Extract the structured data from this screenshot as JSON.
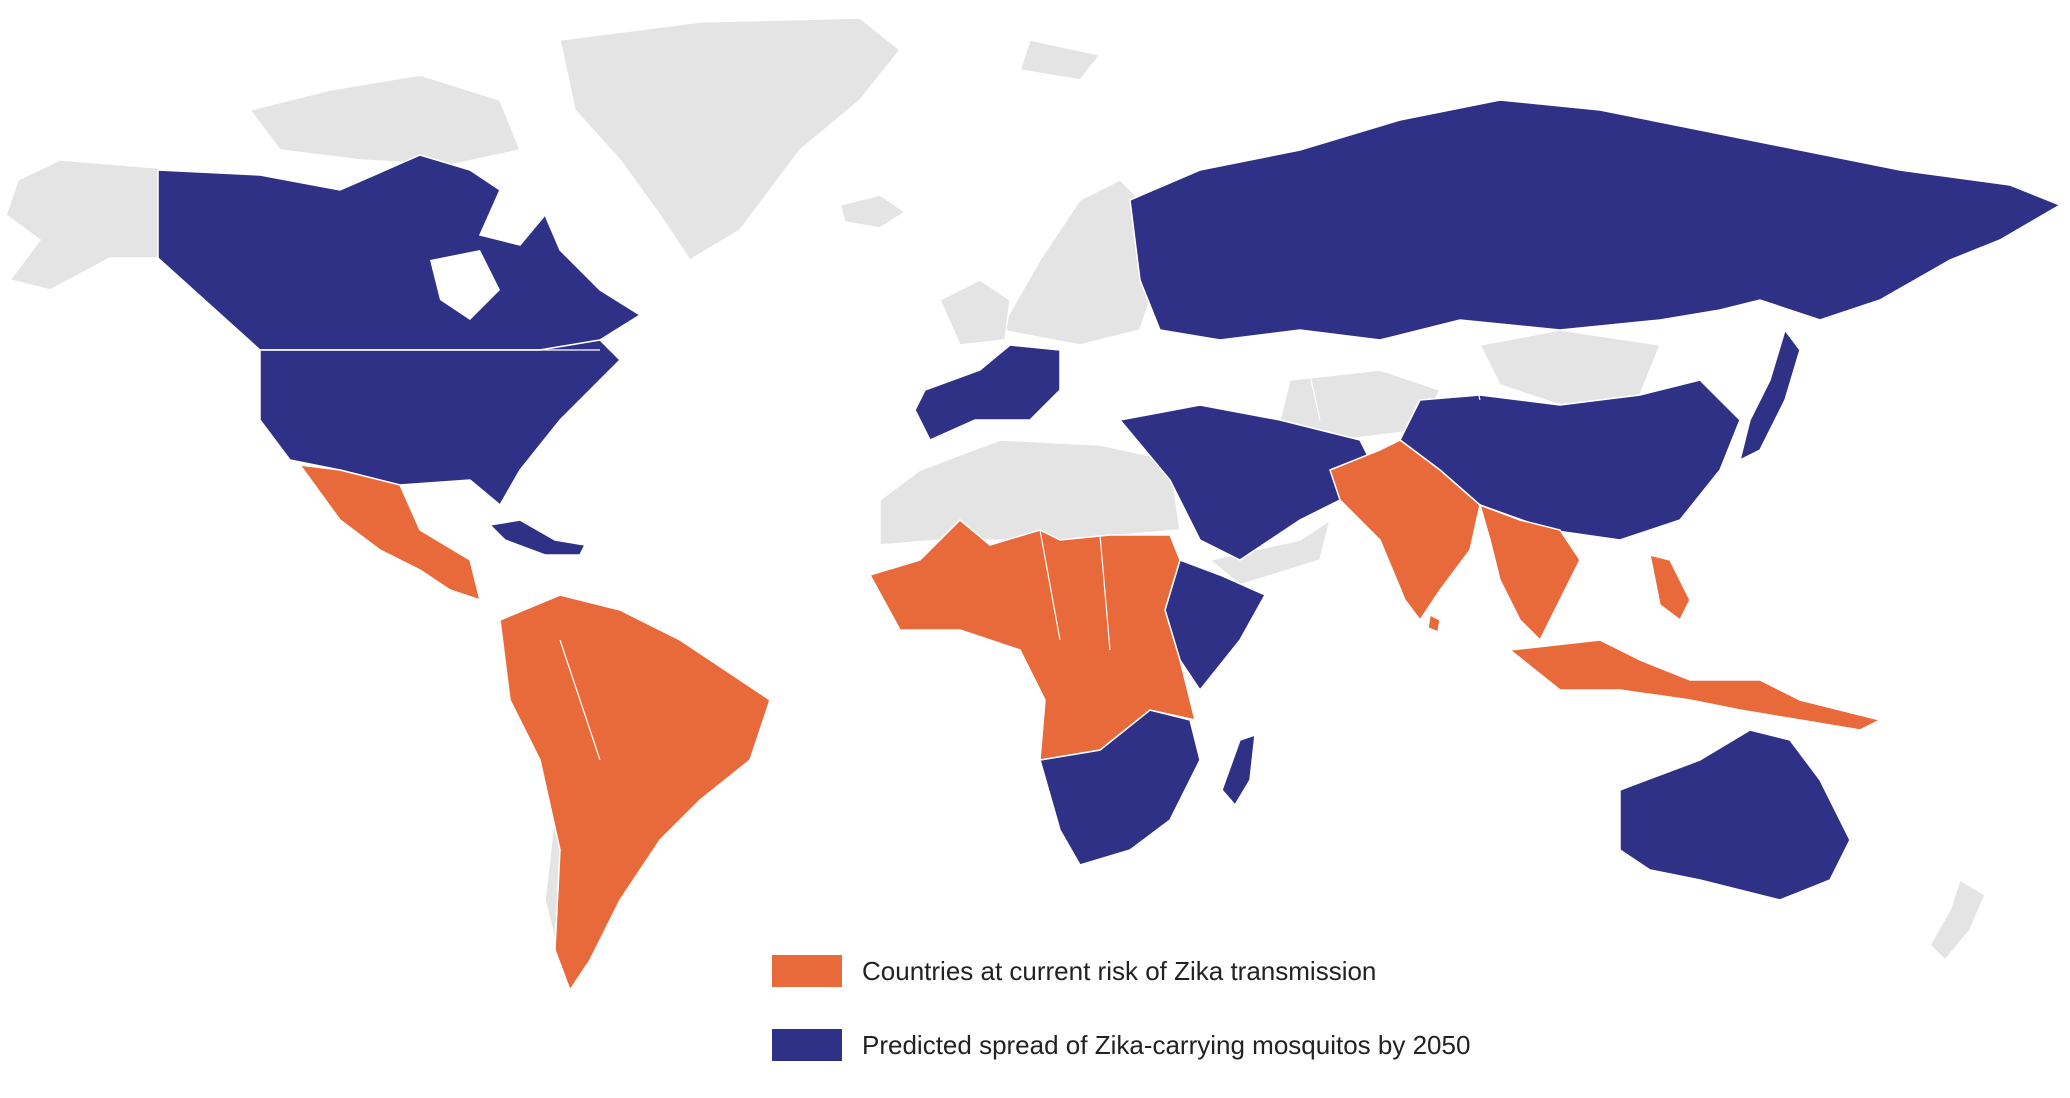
{
  "colors": {
    "no_data": "#e4e4e4",
    "current_risk": "#e8693a",
    "predicted_spread": "#2e3186"
  },
  "legend": {
    "items": [
      {
        "key": "current_risk",
        "label": "Countries at current risk of Zika transmission"
      },
      {
        "key": "predicted_spread",
        "label": "Predicted spread of Zika-carrying mosquitos by 2050"
      }
    ]
  }
}
